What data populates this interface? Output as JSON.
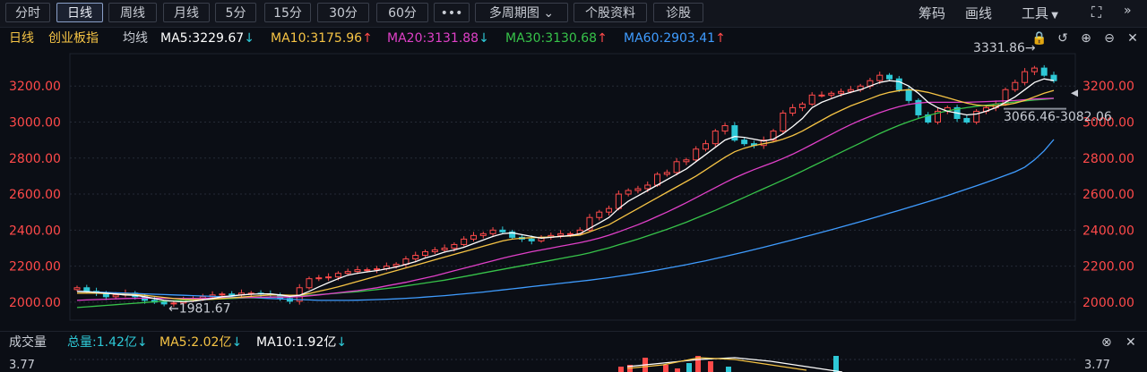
{
  "toolbar": {
    "periods": [
      "分时",
      "日线",
      "周线",
      "月线",
      "5分",
      "15分",
      "30分",
      "60分"
    ],
    "more": "•••",
    "multi_period": "多周期图",
    "stock_info": "个股资料",
    "diagnose": "诊股",
    "chips": "筹码",
    "draw": "画线",
    "tools": "工具"
  },
  "legend": {
    "period": "日线",
    "name": "创业板指",
    "ma_label": "均线",
    "ma5": "MA5:3229.67",
    "ma10": "MA10:3175.96",
    "ma20": "MA20:3131.88",
    "ma30": "MA30:3130.68",
    "ma60": "MA60:2903.41",
    "up_arrow": "↑",
    "down_arrow": "↓"
  },
  "colors": {
    "up": "#ff4a4a",
    "down": "#2ec8d6",
    "ma5": "#ffffff",
    "ma10": "#f6c445",
    "ma20": "#e040c8",
    "ma30": "#37c34a",
    "ma60": "#3f9cff"
  },
  "chart_data": {
    "type": "candlestick",
    "y_ticks": [
      "3200.00",
      "3000.00",
      "2800.00",
      "2600.00",
      "2400.00",
      "2200.00",
      "2000.00"
    ],
    "y_tick_values": [
      3200,
      3000,
      2800,
      2600,
      2400,
      2200,
      2000
    ],
    "ylim": [
      1900,
      3380
    ],
    "annotations": {
      "high": "3331.86→",
      "low": "←1981.67",
      "range": "3066.46-3082.06"
    },
    "closes": [
      2080,
      2060,
      2050,
      2030,
      2040,
      2050,
      2030,
      2010,
      2000,
      1990,
      1995,
      2010,
      2020,
      2030,
      2040,
      2045,
      2040,
      2050,
      2050,
      2045,
      2040,
      2020,
      2005,
      2080,
      2130,
      2135,
      2140,
      2160,
      2170,
      2180,
      2180,
      2185,
      2200,
      2210,
      2240,
      2260,
      2280,
      2290,
      2300,
      2320,
      2350,
      2370,
      2380,
      2400,
      2390,
      2360,
      2350,
      2340,
      2360,
      2370,
      2380,
      2380,
      2400,
      2470,
      2500,
      2520,
      2600,
      2620,
      2630,
      2650,
      2710,
      2720,
      2780,
      2790,
      2850,
      2880,
      2950,
      2980,
      2900,
      2880,
      2870,
      2900,
      2950,
      3050,
      3080,
      3100,
      3150,
      3150,
      3160,
      3170,
      3180,
      3200,
      3230,
      3260,
      3240,
      3180,
      3120,
      3040,
      3000,
      3060,
      3080,
      3020,
      3000,
      3060,
      3080,
      3100,
      3180,
      3220,
      3280,
      3300,
      3260,
      3230
    ],
    "ma5": [
      2060,
      2058,
      2054,
      2050,
      2045,
      2040,
      2038,
      2030,
      2020,
      2010,
      2005,
      2002,
      2005,
      2012,
      2020,
      2030,
      2035,
      2040,
      2044,
      2046,
      2046,
      2040,
      2032,
      2038,
      2060,
      2085,
      2108,
      2130,
      2150,
      2160,
      2168,
      2175,
      2185,
      2195,
      2210,
      2225,
      2245,
      2260,
      2278,
      2290,
      2305,
      2325,
      2345,
      2365,
      2380,
      2385,
      2375,
      2365,
      2355,
      2360,
      2365,
      2370,
      2380,
      2410,
      2440,
      2470,
      2520,
      2560,
      2590,
      2620,
      2650,
      2680,
      2710,
      2740,
      2780,
      2820,
      2860,
      2900,
      2920,
      2915,
      2905,
      2895,
      2905,
      2935,
      2975,
      3020,
      3080,
      3110,
      3130,
      3150,
      3165,
      3180,
      3200,
      3220,
      3230,
      3225,
      3200,
      3160,
      3110,
      3080,
      3060,
      3050,
      3040,
      3045,
      3060,
      3080,
      3110,
      3140,
      3180,
      3220,
      3240,
      3230
    ],
    "ma10": [
      2050,
      2050,
      2050,
      2048,
      2046,
      2044,
      2042,
      2038,
      2032,
      2026,
      2020,
      2016,
      2014,
      2014,
      2016,
      2020,
      2024,
      2028,
      2032,
      2036,
      2040,
      2040,
      2038,
      2038,
      2048,
      2060,
      2072,
      2085,
      2100,
      2115,
      2130,
      2145,
      2160,
      2175,
      2190,
      2205,
      2220,
      2235,
      2250,
      2265,
      2280,
      2295,
      2310,
      2325,
      2340,
      2350,
      2355,
      2358,
      2360,
      2362,
      2365,
      2368,
      2372,
      2390,
      2410,
      2430,
      2460,
      2490,
      2520,
      2550,
      2580,
      2610,
      2640,
      2670,
      2700,
      2735,
      2770,
      2805,
      2835,
      2855,
      2870,
      2880,
      2890,
      2905,
      2925,
      2950,
      2980,
      3010,
      3040,
      3065,
      3090,
      3110,
      3130,
      3150,
      3165,
      3175,
      3180,
      3175,
      3165,
      3150,
      3135,
      3120,
      3105,
      3095,
      3090,
      3090,
      3095,
      3105,
      3120,
      3140,
      3160,
      3176
    ],
    "ma20": [
      2010,
      2012,
      2014,
      2016,
      2018,
      2020,
      2021,
      2022,
      2022,
      2021,
      2020,
      2020,
      2020,
      2021,
      2022,
      2023,
      2024,
      2025,
      2026,
      2027,
      2028,
      2028,
      2028,
      2030,
      2035,
      2040,
      2046,
      2052,
      2058,
      2064,
      2072,
      2080,
      2090,
      2100,
      2110,
      2122,
      2134,
      2146,
      2160,
      2174,
      2188,
      2202,
      2216,
      2230,
      2244,
      2256,
      2268,
      2280,
      2290,
      2300,
      2310,
      2320,
      2330,
      2342,
      2356,
      2372,
      2390,
      2410,
      2430,
      2452,
      2476,
      2500,
      2526,
      2552,
      2580,
      2608,
      2636,
      2664,
      2690,
      2714,
      2736,
      2756,
      2776,
      2798,
      2822,
      2848,
      2876,
      2904,
      2932,
      2960,
      2986,
      3010,
      3032,
      3052,
      3070,
      3086,
      3098,
      3106,
      3110,
      3110,
      3110,
      3110,
      3110,
      3112,
      3114,
      3116,
      3118,
      3120,
      3124,
      3128,
      3130,
      3132
    ],
    "ma30": [
      1970,
      1974,
      1978,
      1982,
      1986,
      1990,
      1994,
      1998,
      2002,
      2005,
      2008,
      2010,
      2012,
      2014,
      2016,
      2018,
      2020,
      2022,
      2024,
      2026,
      2028,
      2030,
      2032,
      2034,
      2038,
      2042,
      2046,
      2050,
      2054,
      2058,
      2064,
      2070,
      2076,
      2082,
      2090,
      2098,
      2106,
      2114,
      2122,
      2132,
      2142,
      2152,
      2162,
      2172,
      2182,
      2192,
      2202,
      2212,
      2222,
      2232,
      2242,
      2252,
      2262,
      2274,
      2288,
      2302,
      2318,
      2334,
      2350,
      2368,
      2386,
      2404,
      2424,
      2444,
      2466,
      2488,
      2510,
      2534,
      2558,
      2582,
      2606,
      2630,
      2654,
      2678,
      2702,
      2728,
      2754,
      2780,
      2806,
      2832,
      2858,
      2884,
      2910,
      2936,
      2960,
      2982,
      3002,
      3020,
      3036,
      3050,
      3062,
      3072,
      3080,
      3088,
      3094,
      3100,
      3106,
      3112,
      3118,
      3122,
      3126,
      3131
    ],
    "ma60": [
      2060,
      2058,
      2056,
      2054,
      2052,
      2050,
      2048,
      2046,
      2044,
      2042,
      2040,
      2038,
      2036,
      2034,
      2032,
      2030,
      2028,
      2026,
      2024,
      2022,
      2020,
      2018,
      2016,
      2014,
      2012,
      2010,
      2010,
      2010,
      2010,
      2011,
      2012,
      2014,
      2016,
      2018,
      2021,
      2024,
      2028,
      2032,
      2036,
      2041,
      2046,
      2051,
      2056,
      2062,
      2068,
      2074,
      2080,
      2086,
      2092,
      2098,
      2104,
      2110,
      2116,
      2122,
      2129,
      2136,
      2144,
      2152,
      2160,
      2169,
      2178,
      2188,
      2198,
      2208,
      2219,
      2230,
      2242,
      2254,
      2266,
      2279,
      2292,
      2305,
      2318,
      2332,
      2346,
      2360,
      2374,
      2388,
      2402,
      2417,
      2432,
      2447,
      2462,
      2478,
      2494,
      2510,
      2526,
      2542,
      2558,
      2575,
      2592,
      2610,
      2628,
      2646,
      2665,
      2684,
      2704,
      2724,
      2750,
      2790,
      2840,
      2903
    ]
  },
  "volume": {
    "label": "成交量",
    "total": "总量:1.42亿",
    "ma5": "MA5:2.02亿",
    "ma10": "MA10:1.92亿",
    "top_value": "3.77"
  }
}
